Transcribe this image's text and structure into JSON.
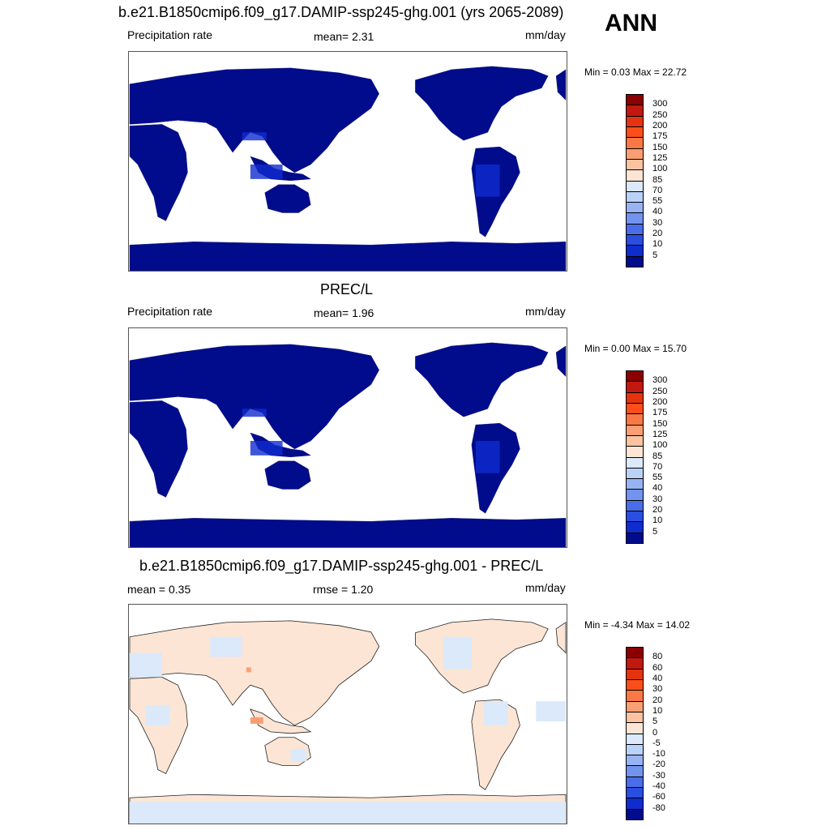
{
  "season": "ANN",
  "panels": [
    {
      "title": "b.e21.B1850cmip6.f09_g17.DAMIP-ssp245-ghg.001 (yrs 2065-2089)",
      "left_label": "Precipitation rate",
      "center_label": "mean=   2.31",
      "right_label": "mm/day",
      "minmax": "Min =   0.03 Max =  22.72",
      "kind": "model"
    },
    {
      "title": "PREC/L",
      "left_label": "Precipitation rate",
      "center_label": "mean=   1.96",
      "right_label": "mm/day",
      "minmax": "Min =   0.00 Max =  15.70",
      "kind": "obs"
    },
    {
      "title": "b.e21.B1850cmip6.f09_g17.DAMIP-ssp245-ghg.001 - PREC/L",
      "left_label": "mean =   0.35",
      "center_label": "rmse =   1.20",
      "right_label": "mm/day",
      "minmax": "Min =  -4.34 Max =  14.02",
      "kind": "diff"
    }
  ],
  "colorbars": {
    "abs": {
      "labels": [
        "300",
        "250",
        "200",
        "175",
        "150",
        "125",
        "100",
        "85",
        "70",
        "55",
        "40",
        "30",
        "20",
        "10",
        "5"
      ],
      "colors": [
        "#8b0000",
        "#c1190f",
        "#e5330f",
        "#fa4f1a",
        "#fa7846",
        "#fa9f74",
        "#fbc3a1",
        "#fce5d4",
        "#dbe9fa",
        "#bad1f8",
        "#98b3f3",
        "#7293ee",
        "#4a6ee9",
        "#2a4ee0",
        "#0f2ccf",
        "#000c8c"
      ]
    },
    "diff": {
      "labels": [
        "80",
        "60",
        "40",
        "30",
        "20",
        "10",
        "5",
        "0",
        "-5",
        "-10",
        "-20",
        "-30",
        "-40",
        "-60",
        "-80"
      ],
      "colors": [
        "#8b0000",
        "#c1190f",
        "#e5330f",
        "#fa4f1a",
        "#fa7846",
        "#fa9f74",
        "#fbc3a1",
        "#fce5d4",
        "#dbe9fa",
        "#bad1f8",
        "#98b3f3",
        "#7293ee",
        "#4a6ee9",
        "#2a4ee0",
        "#0f2ccf",
        "#000c8c"
      ]
    }
  },
  "chart_data": [
    {
      "type": "heatmap",
      "title": "b.e21.B1850cmip6.f09_g17.DAMIP-ssp245-ghg.001 (yrs 2065-2089)",
      "variable": "Precipitation rate",
      "units": "mm/day",
      "mean": 2.31,
      "min": 0.03,
      "max": 22.72,
      "contour_levels": [
        5,
        10,
        20,
        30,
        40,
        55,
        70,
        85,
        100,
        125,
        150,
        175,
        200,
        250,
        300
      ]
    },
    {
      "type": "heatmap",
      "title": "PREC/L",
      "variable": "Precipitation rate",
      "units": "mm/day",
      "mean": 1.96,
      "min": 0.0,
      "max": 15.7,
      "contour_levels": [
        5,
        10,
        20,
        30,
        40,
        55,
        70,
        85,
        100,
        125,
        150,
        175,
        200,
        250,
        300
      ]
    },
    {
      "type": "heatmap",
      "title": "b.e21.B1850cmip6.f09_g17.DAMIP-ssp245-ghg.001 - PREC/L",
      "units": "mm/day",
      "mean": 0.35,
      "rmse": 1.2,
      "min": -4.34,
      "max": 14.02,
      "contour_levels": [
        -80,
        -60,
        -40,
        -30,
        -20,
        -10,
        -5,
        0,
        5,
        10,
        20,
        30,
        40,
        60,
        80
      ]
    }
  ]
}
